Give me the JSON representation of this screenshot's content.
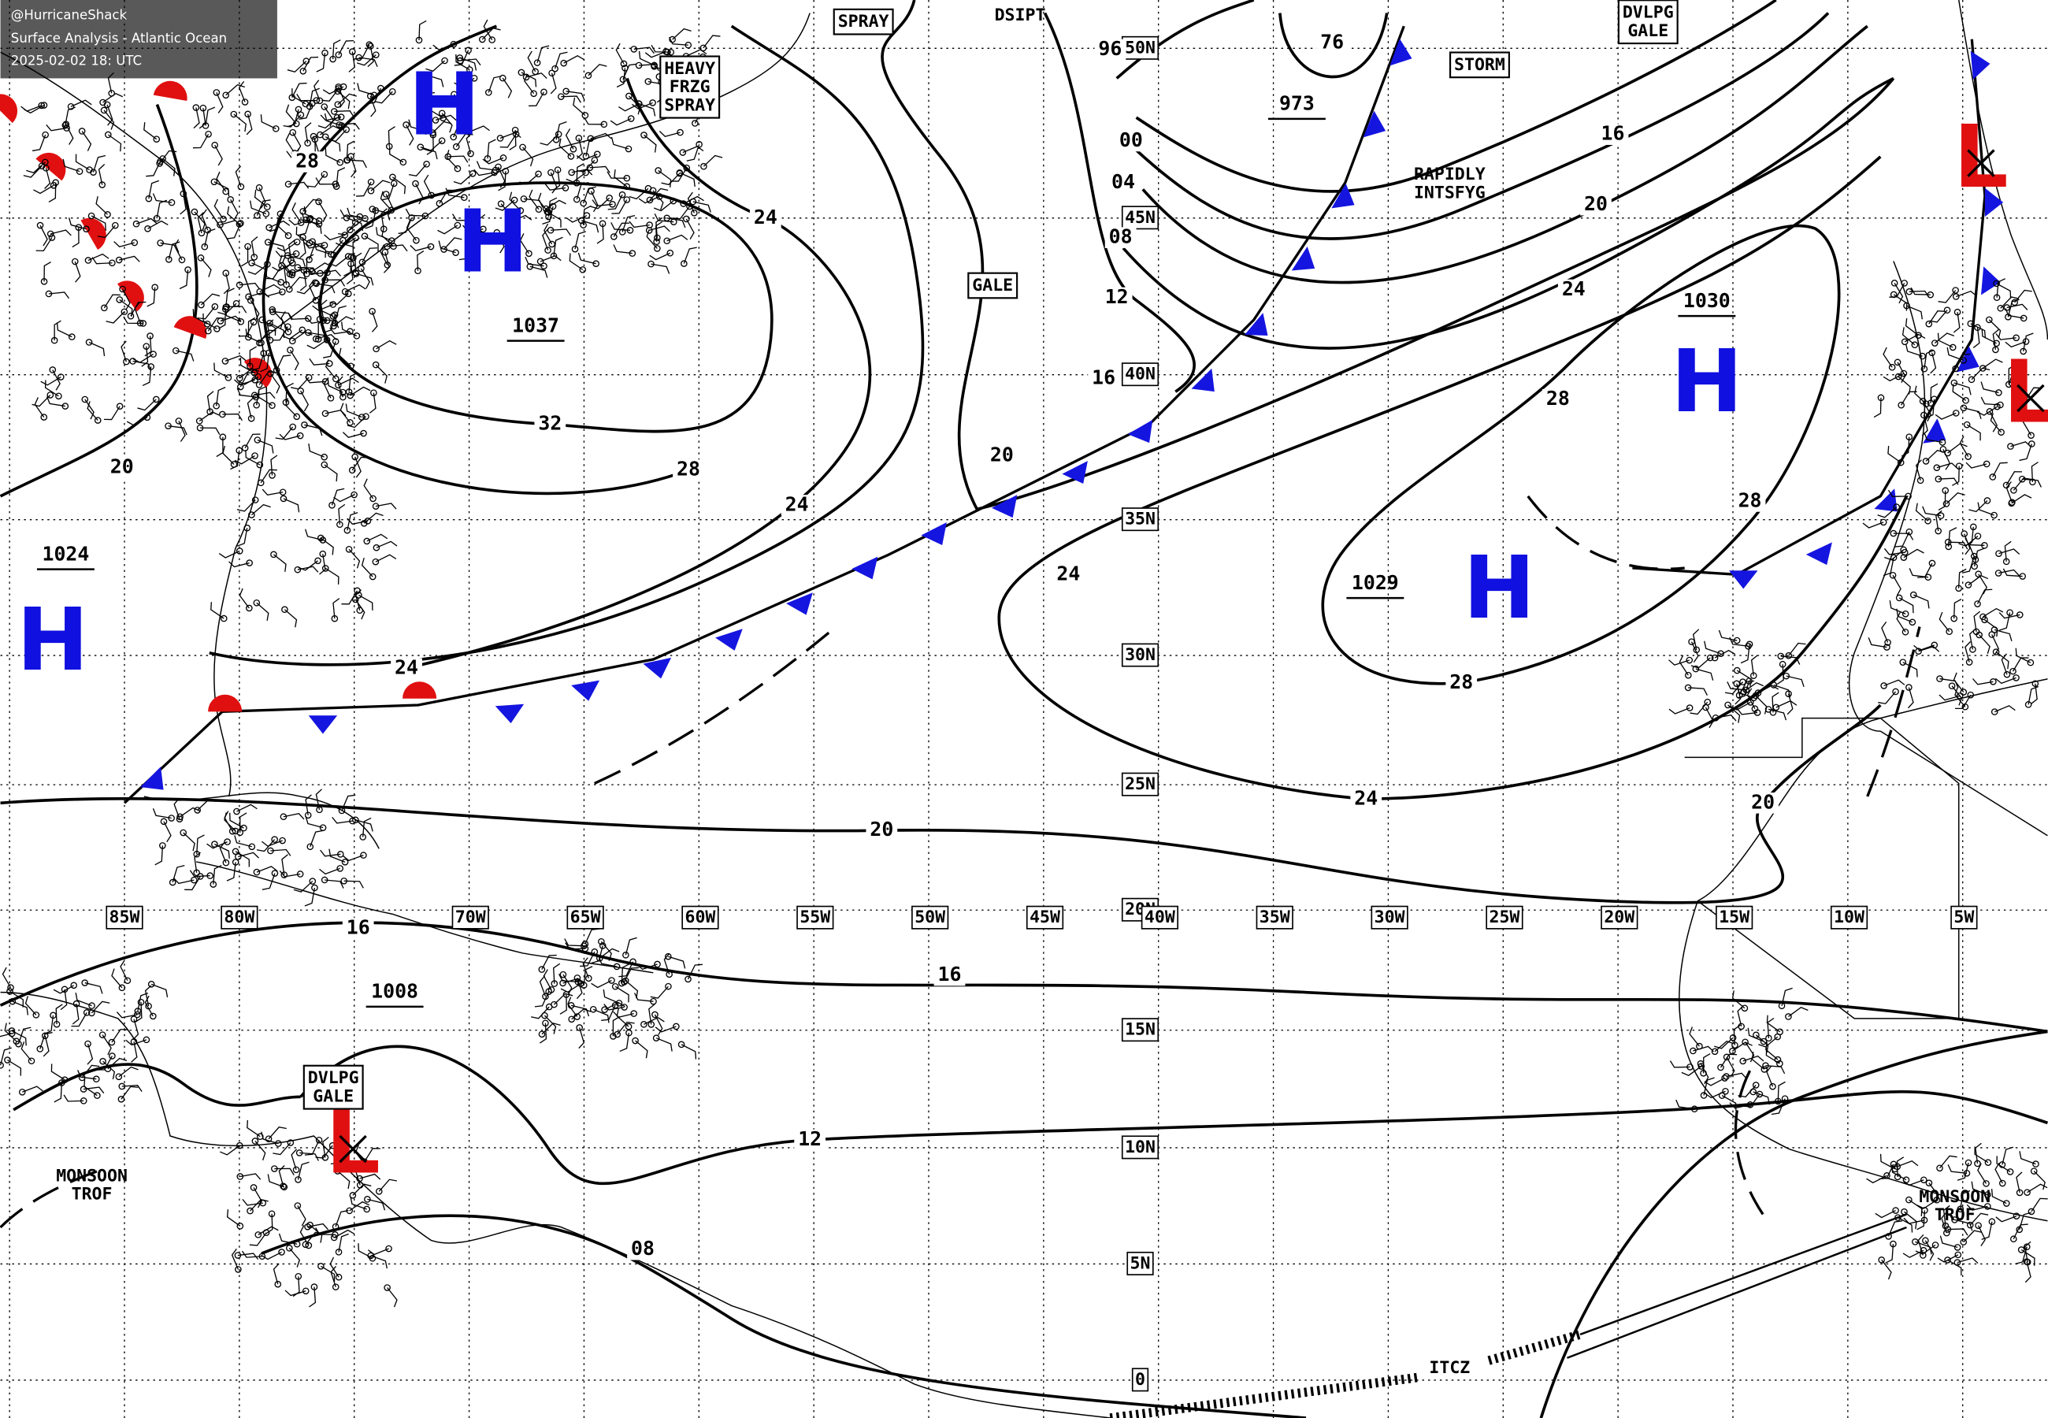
{
  "header": {
    "handle": "@HurricaneShack",
    "title": "Surface Analysis - Atlantic Ocean",
    "timestamp": "2025-02-02 18: UTC"
  },
  "latitude_labels": [
    "50N",
    "45N",
    "40N",
    "35N",
    "30N",
    "25N",
    "20N",
    "15N",
    "10N",
    "5N",
    "0"
  ],
  "longitude_labels": [
    "85W",
    "80W",
    "70W",
    "65W",
    "60W",
    "55W",
    "50W",
    "45W",
    "40W",
    "35W",
    "30W",
    "25W",
    "20W",
    "15W",
    "10W",
    "5W"
  ],
  "highs": [
    "H",
    "H",
    "H",
    "H",
    "H"
  ],
  "lows": [
    "L",
    "L",
    "L"
  ],
  "central_pressures": [
    "1037",
    "1030",
    "1029",
    "1024",
    "973",
    "1008"
  ],
  "isobar_labels": [
    "96",
    "00",
    "04",
    "08",
    "12",
    "16",
    "20",
    "24",
    "28",
    "24",
    "20",
    "16",
    "12",
    "08",
    "76",
    "16",
    "20",
    "24",
    "28",
    "28",
    "20",
    "24",
    "32",
    "28",
    "24",
    "24",
    "20",
    "16",
    "28"
  ],
  "annotations": [
    {
      "lines": [
        "SPRAY"
      ],
      "boxed": true
    },
    {
      "lines": [
        "DSIPT"
      ],
      "boxed": false
    },
    {
      "lines": [
        "HEAVY",
        "FRZG",
        "SPRAY"
      ],
      "boxed": true
    },
    {
      "lines": [
        "DVLPG",
        "GALE"
      ],
      "boxed": true
    },
    {
      "lines": [
        "STORM"
      ],
      "boxed": true
    },
    {
      "lines": [
        "GALE"
      ],
      "boxed": true
    },
    {
      "lines": [
        "RAPIDLY",
        "INTSFYG"
      ],
      "boxed": false
    },
    {
      "lines": [
        "DVLPG",
        "GALE"
      ],
      "boxed": true
    },
    {
      "lines": [
        "MONSOON",
        "TROF"
      ],
      "boxed": false
    },
    {
      "lines": [
        "MONSOON",
        "TROF"
      ],
      "boxed": false
    },
    {
      "lines": [
        "ITCZ"
      ],
      "boxed": false
    }
  ]
}
